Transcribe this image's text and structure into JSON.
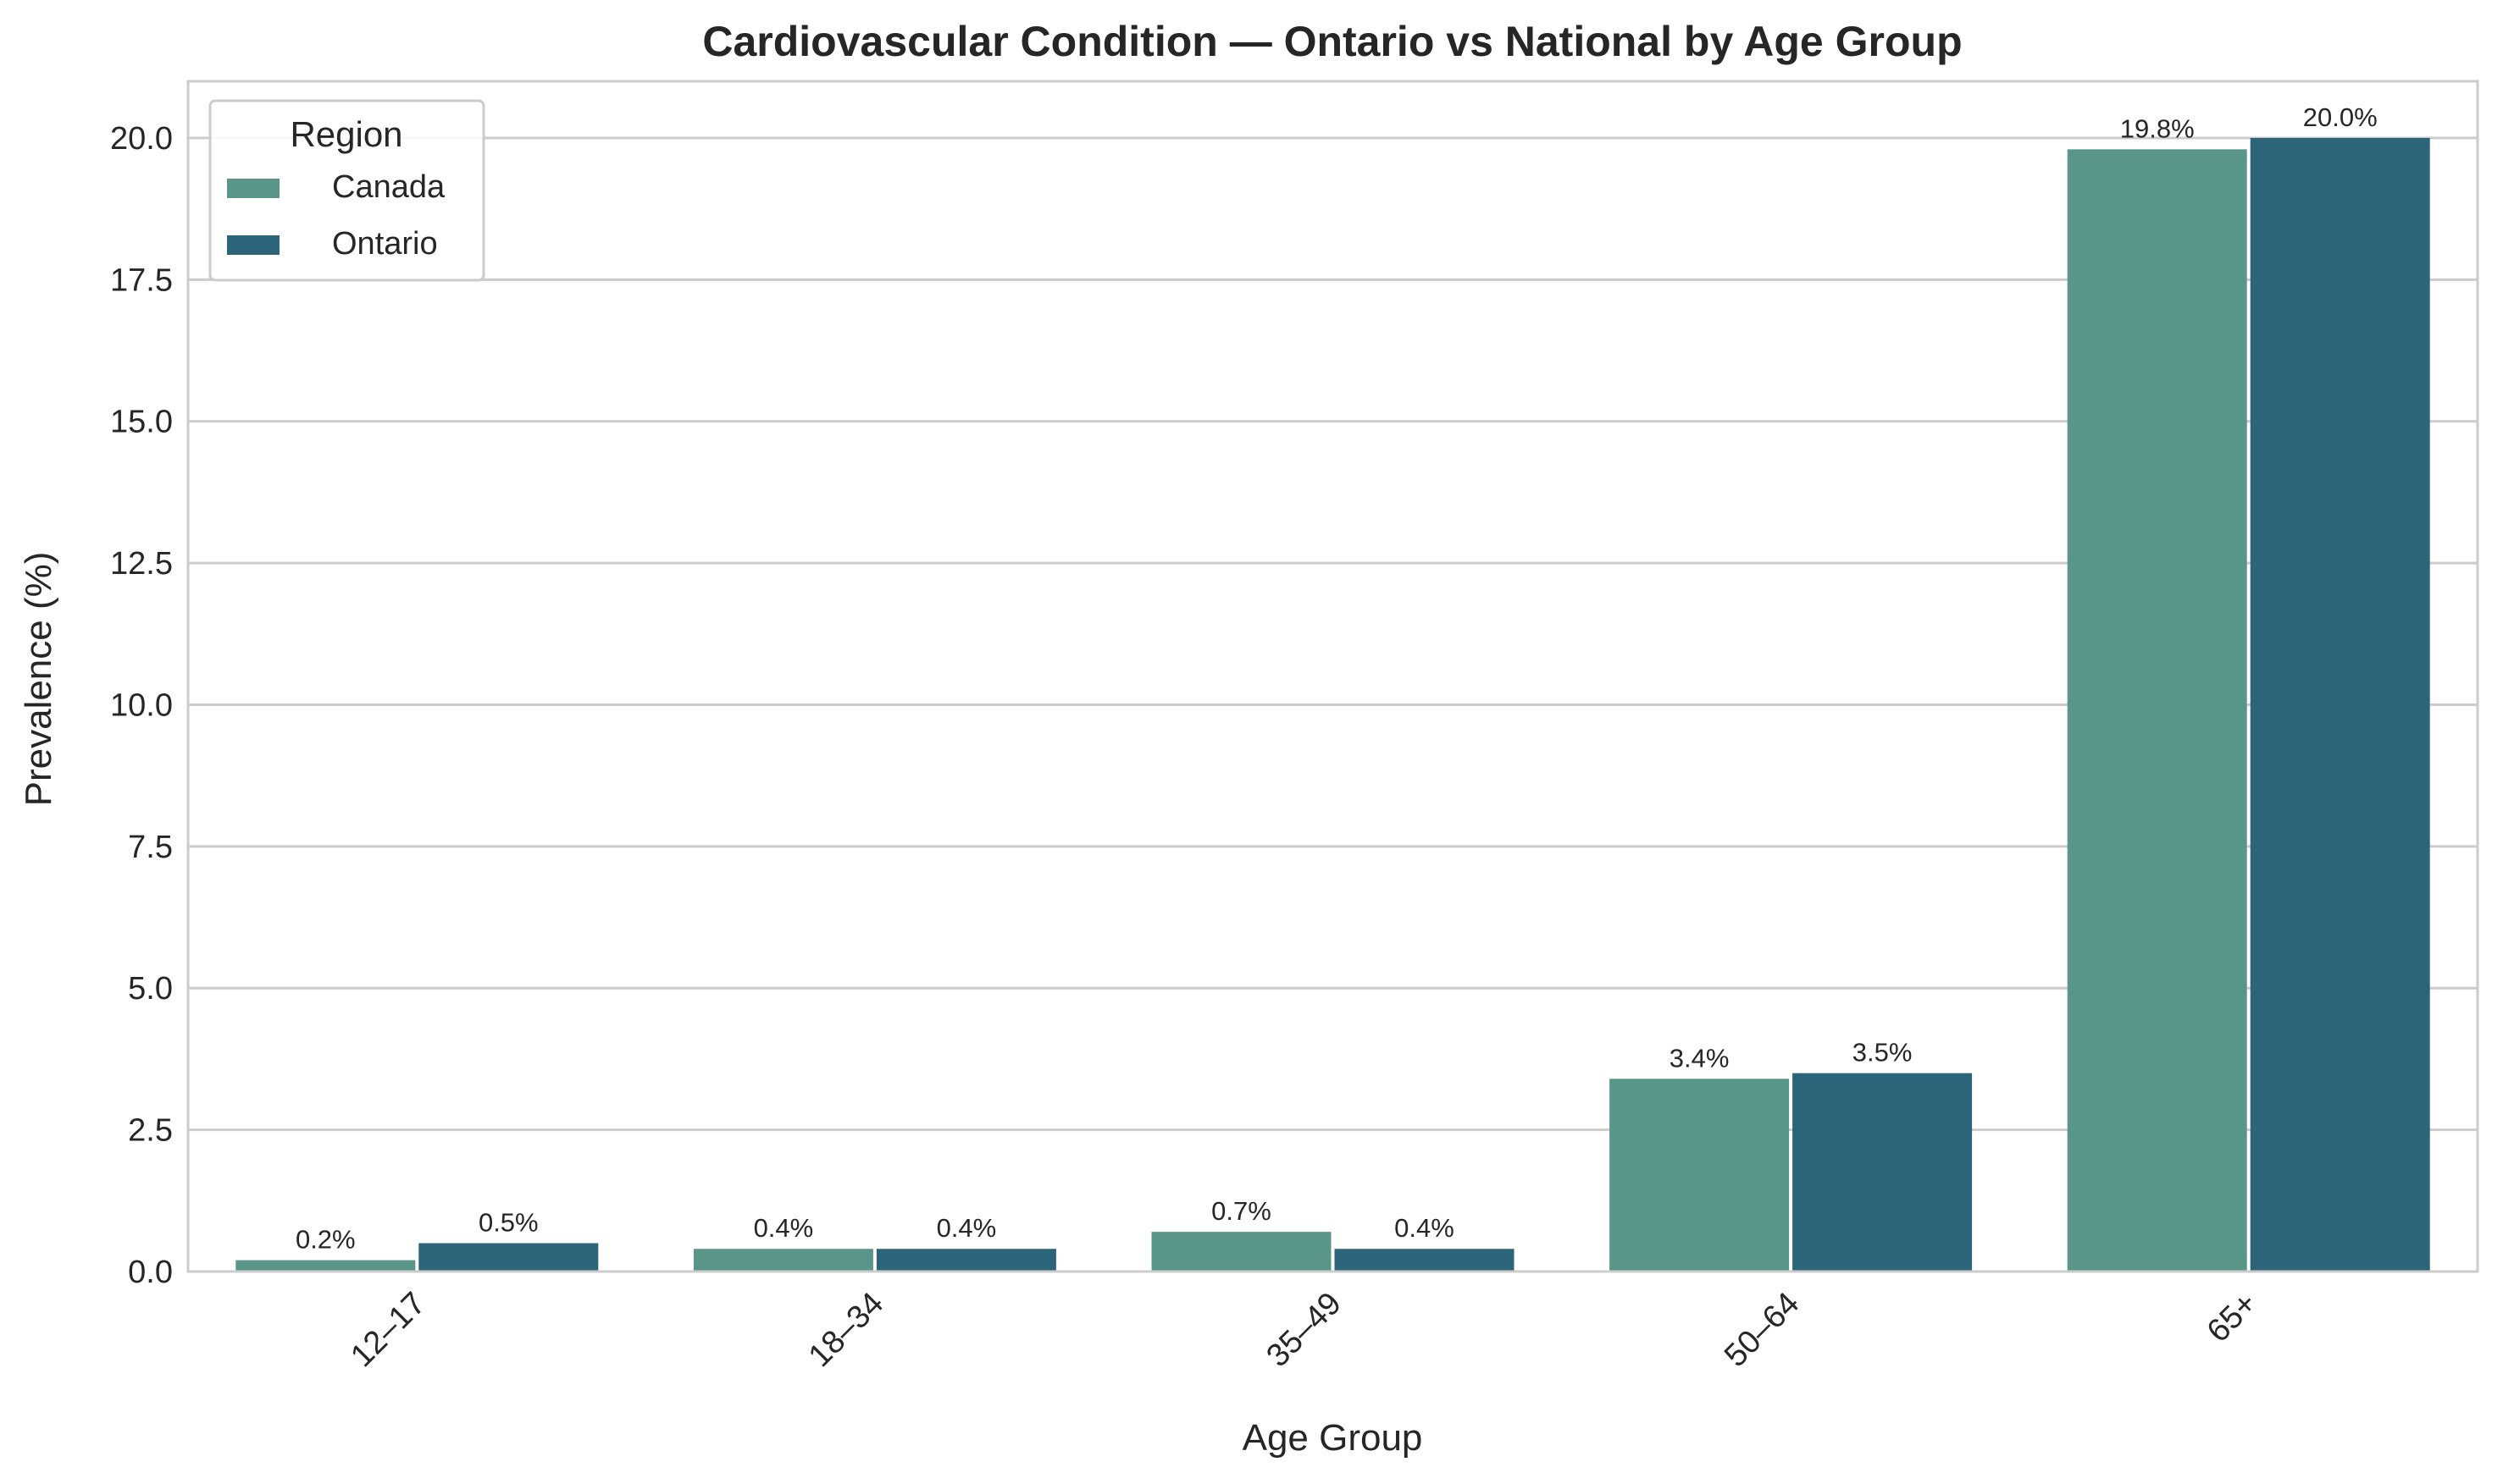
{
  "chart_data": {
    "type": "bar",
    "title": "Cardiovascular Condition — Ontario vs National by Age Group",
    "xlabel": "Age Group",
    "ylabel": "Prevalence (%)",
    "categories": [
      "12–17",
      "18–34",
      "35–49",
      "50–64",
      "65+"
    ],
    "series": [
      {
        "name": "Canada",
        "color": "#5a9589",
        "values": [
          0.2,
          0.4,
          0.7,
          3.4,
          19.8
        ],
        "labels": [
          "0.2%",
          "0.4%",
          "0.7%",
          "3.4%",
          "19.8%"
        ]
      },
      {
        "name": "Ontario",
        "color": "#2c6479",
        "values": [
          0.5,
          0.4,
          0.4,
          3.5,
          20.0
        ],
        "labels": [
          "0.5%",
          "0.4%",
          "0.4%",
          "3.5%",
          "20.0%"
        ]
      }
    ],
    "ylim": [
      0,
      21
    ],
    "yticks": [
      "0.0",
      "2.5",
      "5.0",
      "7.5",
      "10.0",
      "12.5",
      "15.0",
      "17.5",
      "20.0"
    ],
    "ytick_values": [
      0,
      2.5,
      5,
      7.5,
      10,
      12.5,
      15,
      17.5,
      20
    ],
    "legend": {
      "title": "Region",
      "placement": "top-left"
    },
    "grid": "y"
  }
}
